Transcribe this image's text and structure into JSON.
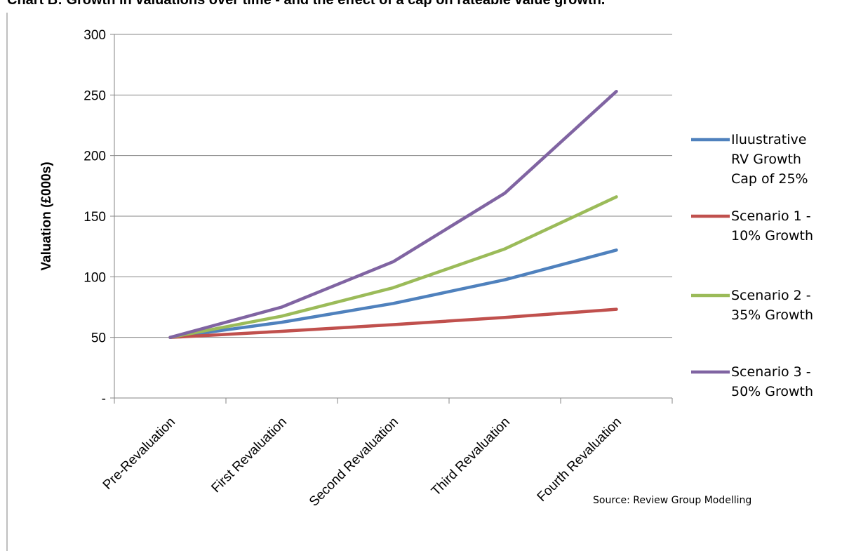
{
  "chart_data": {
    "type": "line",
    "title": "Chart B: Growth in valuations over time - and the effect of a cap on rateable value growth.",
    "xlabel": "",
    "ylabel": "Valuation (£000s)",
    "categories": [
      "Pre-Revaluation",
      "First Revaluation",
      "Second Revaluation",
      "Third Revaluation",
      "Fourth Revaluation"
    ],
    "ylim": [
      0,
      300
    ],
    "yticks": [
      0,
      50,
      100,
      150,
      200,
      250,
      300
    ],
    "ytick_labels": [
      "-",
      "50",
      "100",
      "150",
      "200",
      "250",
      "300"
    ],
    "grid": true,
    "legend_position": "right",
    "series": [
      {
        "name": "Iluustrative RV Growth Cap of 25%",
        "legend_lines": [
          "Iluustrative",
          "RV Growth",
          "Cap of 25%"
        ],
        "color": "#4f81bd",
        "values": [
          50,
          62.5,
          78,
          97.5,
          122
        ]
      },
      {
        "name": "Scenario 1 - 10% Growth",
        "legend_lines": [
          "Scenario 1 -",
          "10% Growth"
        ],
        "color": "#c0504d",
        "values": [
          50,
          55,
          60.5,
          66.5,
          73.2
        ]
      },
      {
        "name": "Scenario 2 - 35% Growth",
        "legend_lines": [
          "Scenario 2 -",
          "35% Growth"
        ],
        "color": "#9bbb59",
        "values": [
          50,
          67.5,
          91,
          123,
          166
        ]
      },
      {
        "name": "Scenario 3 - 50% Growth",
        "legend_lines": [
          "Scenario 3 -",
          "50% Growth"
        ],
        "color": "#8064a2",
        "values": [
          50,
          75,
          112.5,
          169,
          253
        ]
      }
    ],
    "source": "Source: Review Group Modelling"
  }
}
